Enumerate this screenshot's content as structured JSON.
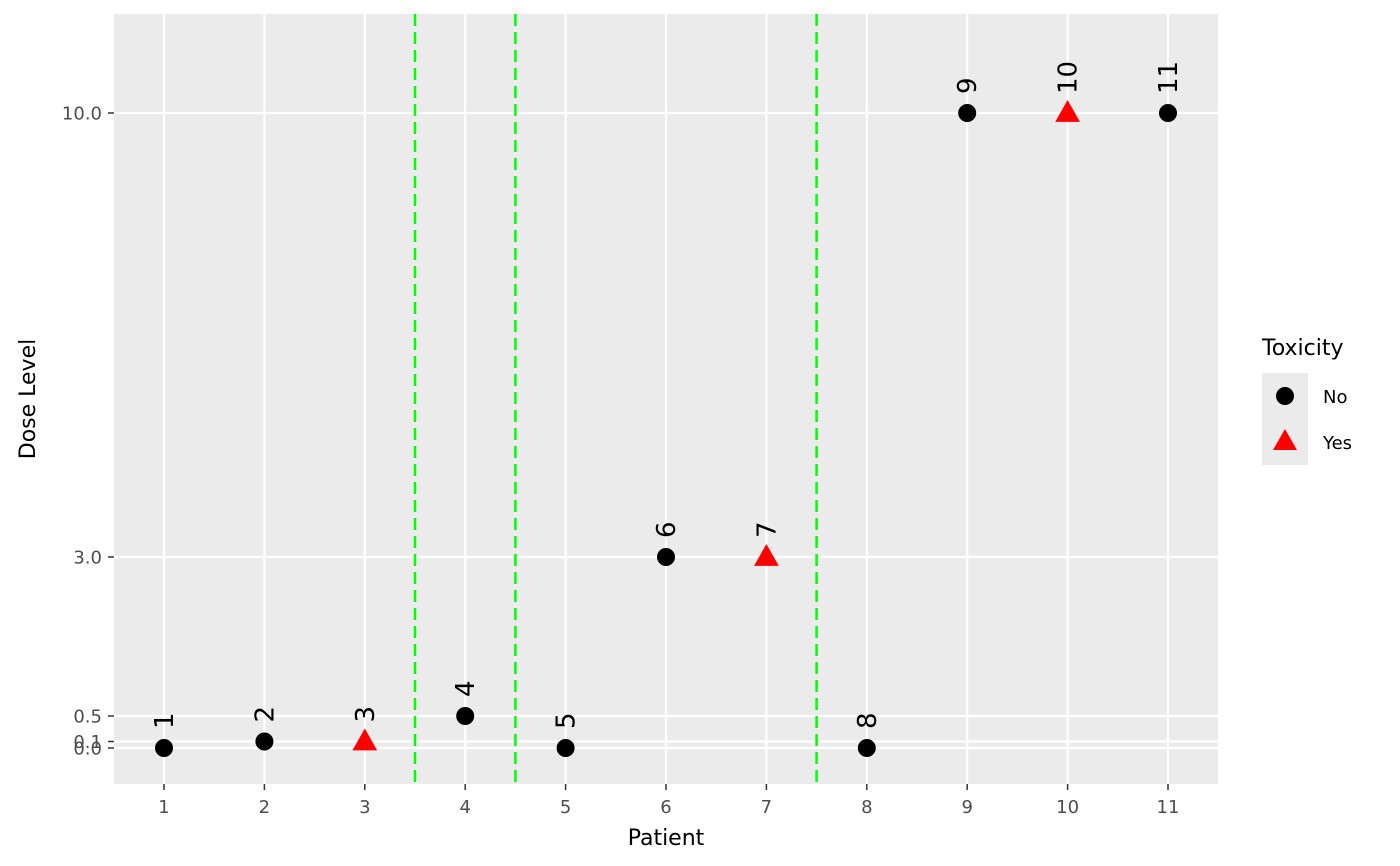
{
  "chart_data": {
    "type": "scatter",
    "xlabel": "Patient",
    "ylabel": "Dose Level",
    "x_ticks": [
      1,
      2,
      3,
      4,
      5,
      6,
      7,
      8,
      9,
      10,
      11
    ],
    "x_tick_labels": [
      "1",
      "2",
      "3",
      "4",
      "5",
      "6",
      "7",
      "8",
      "9",
      "10",
      "11"
    ],
    "y_ticks": [
      0,
      0.1,
      0.5,
      3,
      10
    ],
    "y_tick_labels": [
      "0.0",
      "0.1",
      "0.5",
      "3.0",
      "10.0"
    ],
    "xlim": [
      0.5,
      11.5
    ],
    "ylim": [
      -0.55,
      11.55
    ],
    "grid": true,
    "vlines": {
      "x": [
        3.5,
        4.5,
        7.5
      ],
      "color": "#00ff00",
      "style": "dashed"
    },
    "points": [
      {
        "patient": 1,
        "dose": 0,
        "toxicity": "No",
        "label": "1"
      },
      {
        "patient": 2,
        "dose": 0.1,
        "toxicity": "No",
        "label": "2"
      },
      {
        "patient": 3,
        "dose": 0.1,
        "toxicity": "Yes",
        "label": "3"
      },
      {
        "patient": 4,
        "dose": 0.5,
        "toxicity": "No",
        "label": "4"
      },
      {
        "patient": 5,
        "dose": 0,
        "toxicity": "No",
        "label": "5"
      },
      {
        "patient": 6,
        "dose": 3,
        "toxicity": "No",
        "label": "6"
      },
      {
        "patient": 7,
        "dose": 3,
        "toxicity": "Yes",
        "label": "7"
      },
      {
        "patient": 8,
        "dose": 0,
        "toxicity": "No",
        "label": "8"
      },
      {
        "patient": 9,
        "dose": 10,
        "toxicity": "No",
        "label": "9"
      },
      {
        "patient": 10,
        "dose": 10,
        "toxicity": "Yes",
        "label": "10"
      },
      {
        "patient": 11,
        "dose": 10,
        "toxicity": "No",
        "label": "11"
      }
    ],
    "legend": {
      "title": "Toxicity",
      "position": "right",
      "entries": [
        {
          "label": "No",
          "shape": "circle",
          "color": "#000000"
        },
        {
          "label": "Yes",
          "shape": "triangle",
          "color": "#ff0000"
        }
      ]
    },
    "colors": {
      "panel_background": "#ebebeb",
      "grid": "#ffffff",
      "no_toxicity": "#000000",
      "yes_toxicity": "#ff0000"
    }
  }
}
